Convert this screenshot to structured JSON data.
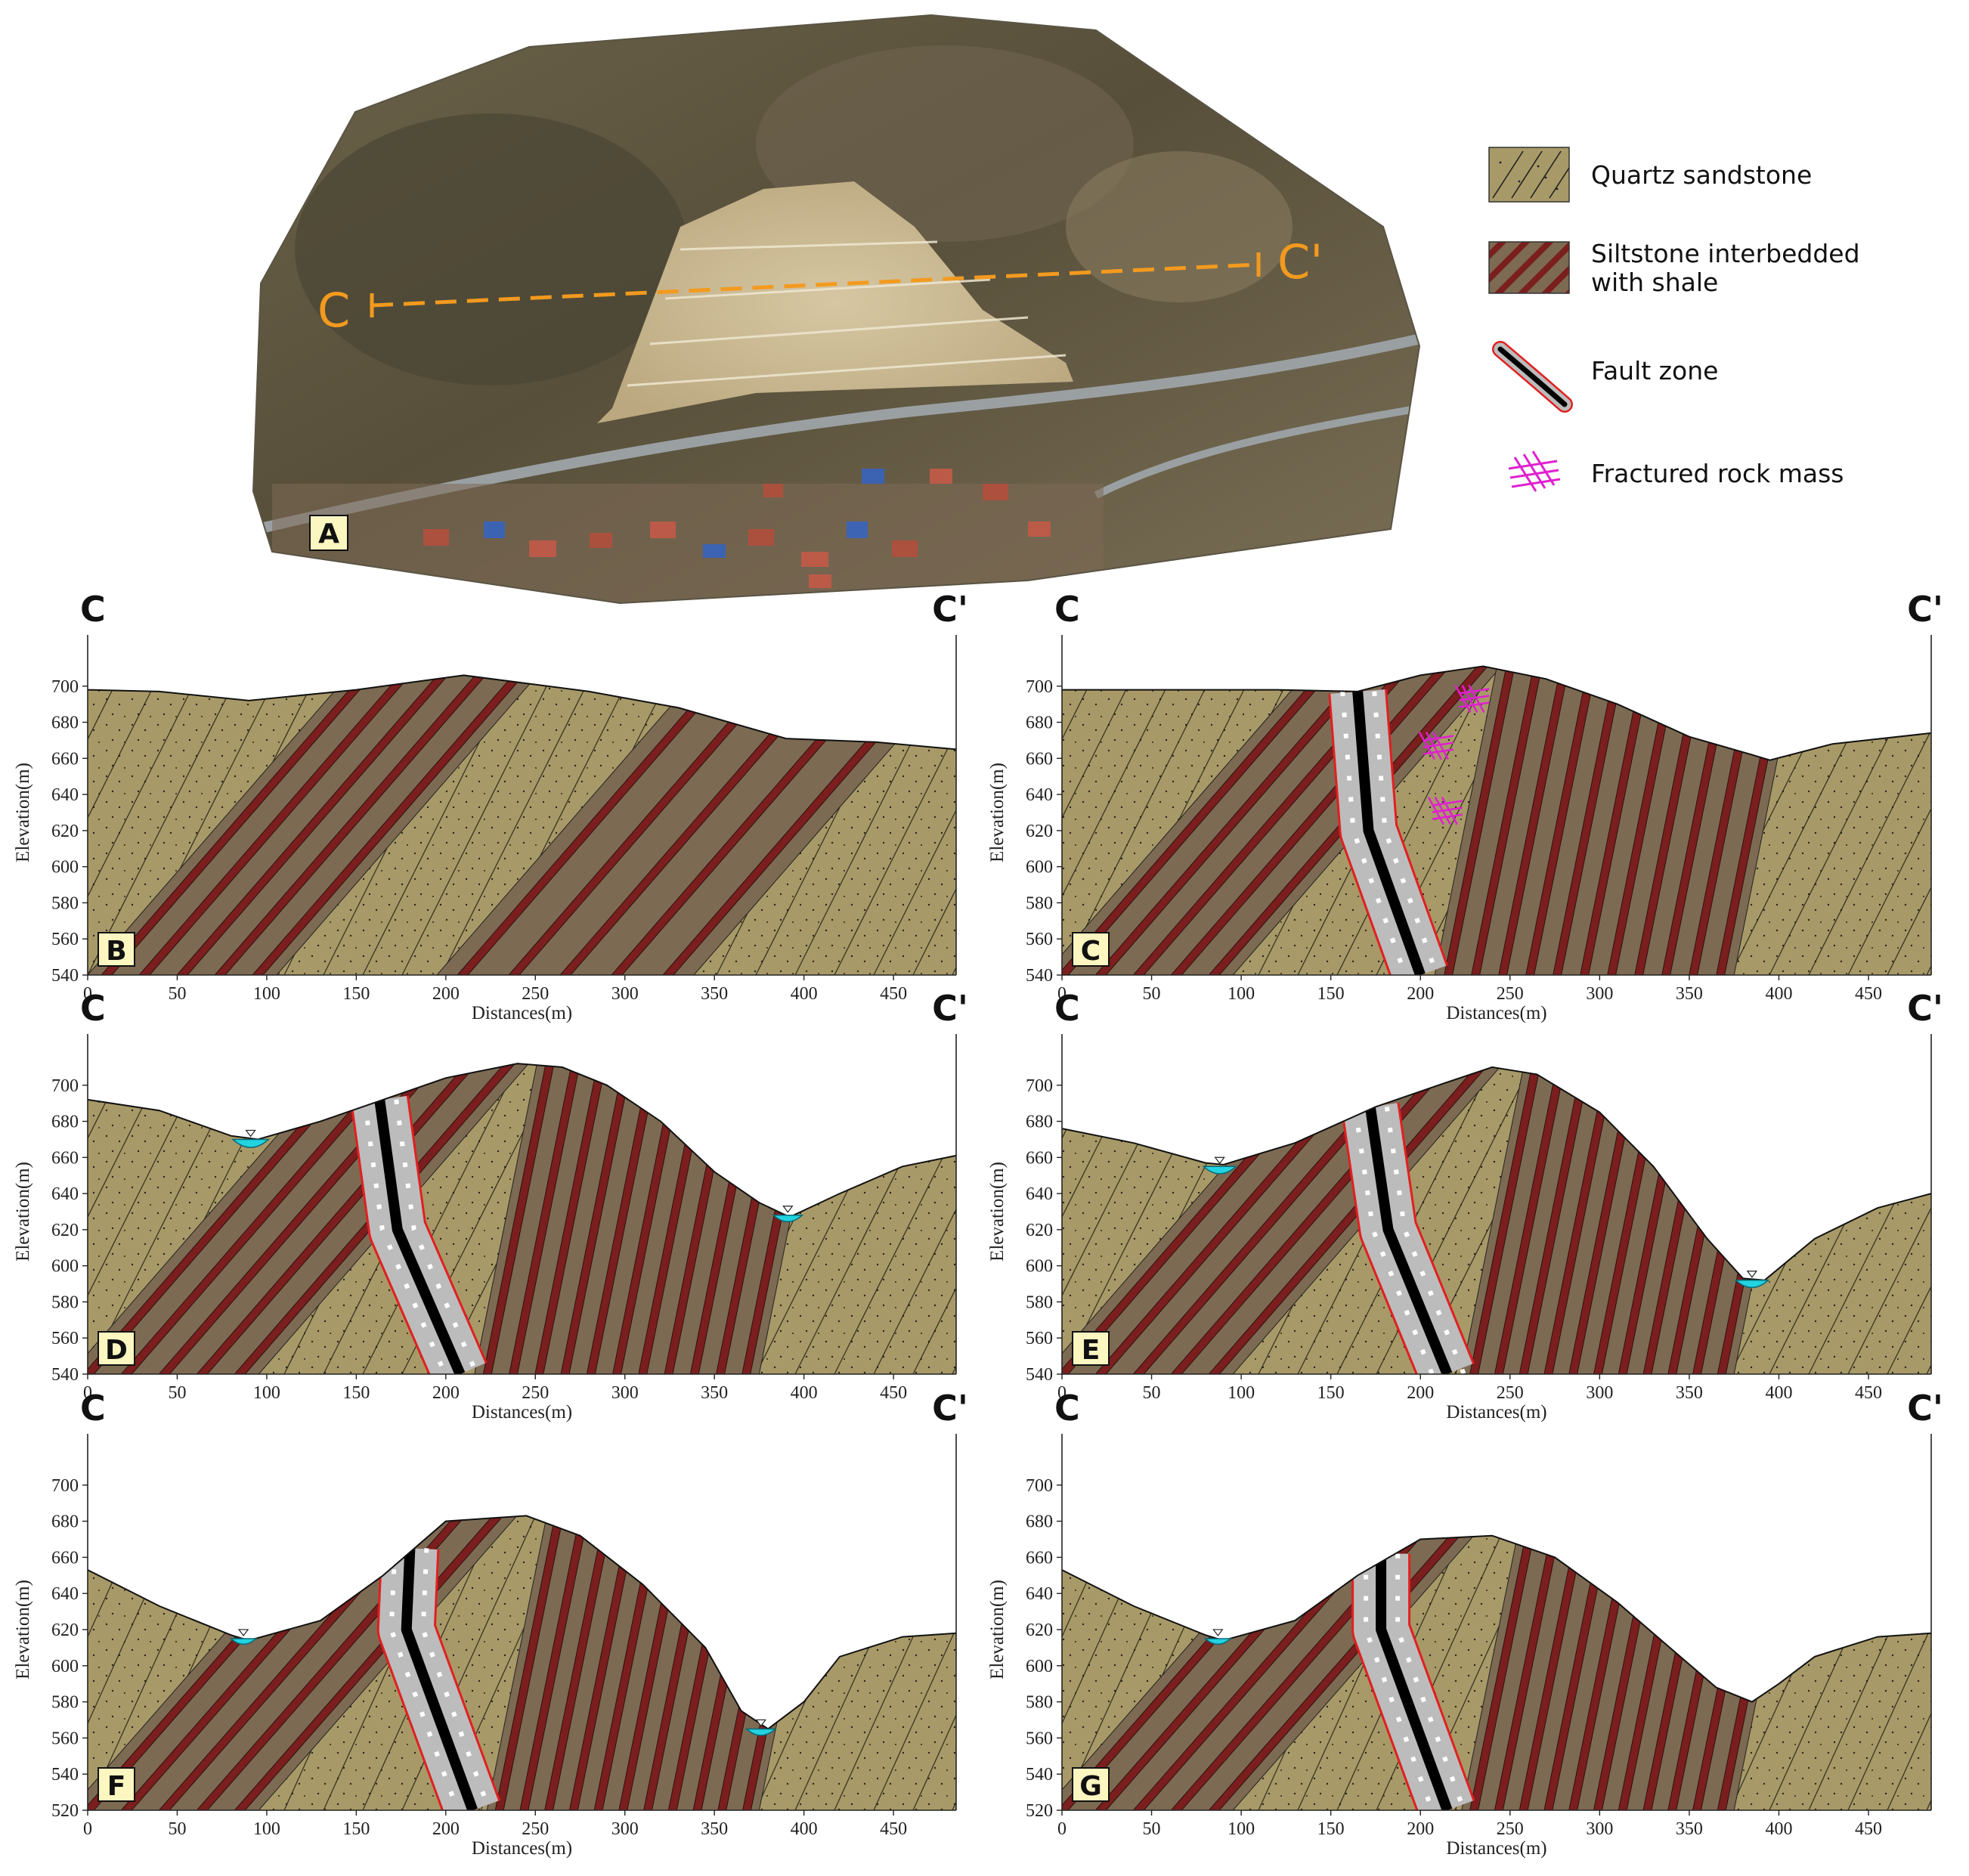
{
  "map": {
    "panel_label": "A",
    "section_start": "C",
    "section_end": "C'"
  },
  "legend": [
    {
      "label_lines": [
        "Quartz sandstone"
      ],
      "icon": "sandstone-swatch",
      "color": "#a89a68"
    },
    {
      "label_lines": [
        "Siltstone interbedded",
        "with shale"
      ],
      "icon": "siltstone-shale-swatch",
      "color": "#7a1e1e"
    },
    {
      "label_lines": [
        "Fault zone"
      ],
      "icon": "fault-zone-symbol",
      "color": "#e02020"
    },
    {
      "label_lines": [
        "Fractured rock mass"
      ],
      "icon": "fracture-symbol",
      "color": "#e020d0"
    }
  ],
  "colors": {
    "sandstone": "#a89a68",
    "siltstone_band": "#7c6a52",
    "shale_stripe": "#7a1e1e",
    "fault_gouge": "#bcbcbc",
    "fault_core": "#000000",
    "fault_edge": "#e02020",
    "water": "#22d3e0",
    "orange_line": "#f39a1e",
    "label_box": "#fcf6c0"
  },
  "chart_data": [
    {
      "panel": "B",
      "type": "diagram",
      "start_label": "C",
      "end_label": "C'",
      "xlabel": "Distances(m)",
      "ylabel": "Elevation(m)",
      "xlim": [
        0,
        485
      ],
      "ylim": [
        540,
        720
      ],
      "xticks": [
        0,
        50,
        100,
        150,
        200,
        250,
        300,
        350,
        400,
        450
      ],
      "yticks": [
        540,
        560,
        580,
        600,
        620,
        640,
        660,
        680,
        700
      ],
      "surface": [
        [
          0,
          698
        ],
        [
          40,
          697
        ],
        [
          90,
          692
        ],
        [
          150,
          698
        ],
        [
          210,
          706
        ],
        [
          280,
          697
        ],
        [
          330,
          688
        ],
        [
          390,
          671
        ],
        [
          440,
          669
        ],
        [
          485,
          665
        ]
      ],
      "fault": null,
      "water": []
    },
    {
      "panel": "C",
      "type": "diagram",
      "start_label": "C",
      "end_label": "C'",
      "xlabel": "Distances(m)",
      "ylabel": "Elevation(m)",
      "xlim": [
        0,
        485
      ],
      "ylim": [
        540,
        720
      ],
      "xticks": [
        0,
        50,
        100,
        150,
        200,
        250,
        300,
        350,
        400,
        450
      ],
      "yticks": [
        540,
        560,
        580,
        600,
        620,
        640,
        660,
        680,
        700
      ],
      "surface": [
        [
          0,
          698
        ],
        [
          60,
          698
        ],
        [
          120,
          698
        ],
        [
          165,
          697
        ],
        [
          200,
          706
        ],
        [
          235,
          711
        ],
        [
          270,
          704
        ],
        [
          310,
          690
        ],
        [
          350,
          672
        ],
        [
          385,
          662
        ],
        [
          395,
          659
        ],
        [
          430,
          668
        ],
        [
          485,
          674
        ]
      ],
      "fault": [
        [
          165,
          697
        ],
        [
          171,
          620
        ],
        [
          200,
          540
        ]
      ],
      "water": []
    },
    {
      "panel": "D",
      "type": "diagram",
      "start_label": "C",
      "end_label": "C'",
      "xlabel": "Distances(m)",
      "ylabel": "Elevation(m)",
      "xlim": [
        0,
        485
      ],
      "ylim": [
        540,
        720
      ],
      "xticks": [
        0,
        50,
        100,
        150,
        200,
        250,
        300,
        350,
        400,
        450
      ],
      "yticks": [
        540,
        560,
        580,
        600,
        620,
        640,
        660,
        680,
        700
      ],
      "surface": [
        [
          0,
          692
        ],
        [
          40,
          686
        ],
        [
          80,
          672
        ],
        [
          95,
          670
        ],
        [
          130,
          680
        ],
        [
          165,
          692
        ],
        [
          200,
          704
        ],
        [
          240,
          712
        ],
        [
          265,
          710
        ],
        [
          290,
          700
        ],
        [
          320,
          680
        ],
        [
          350,
          652
        ],
        [
          375,
          635
        ],
        [
          392,
          627
        ],
        [
          420,
          640
        ],
        [
          455,
          655
        ],
        [
          485,
          661
        ]
      ],
      "fault": [
        [
          163,
          692
        ],
        [
          173,
          620
        ],
        [
          208,
          540
        ]
      ],
      "water": [
        {
          "x": 91,
          "y": 670,
          "w": 10
        },
        {
          "x": 391,
          "y": 628,
          "w": 8
        }
      ]
    },
    {
      "panel": "E",
      "type": "diagram",
      "start_label": "C",
      "end_label": "C'",
      "xlabel": "Distances(m)",
      "ylabel": "Elevation(m)",
      "xlim": [
        0,
        485
      ],
      "ylim": [
        540,
        720
      ],
      "xticks": [
        0,
        50,
        100,
        150,
        200,
        250,
        300,
        350,
        400,
        450
      ],
      "yticks": [
        540,
        560,
        580,
        600,
        620,
        640,
        660,
        680,
        700
      ],
      "surface": [
        [
          0,
          676
        ],
        [
          40,
          668
        ],
        [
          80,
          657
        ],
        [
          90,
          656
        ],
        [
          130,
          668
        ],
        [
          175,
          688
        ],
        [
          210,
          700
        ],
        [
          240,
          710
        ],
        [
          265,
          706
        ],
        [
          300,
          685
        ],
        [
          330,
          655
        ],
        [
          360,
          615
        ],
        [
          380,
          593
        ],
        [
          392,
          592
        ],
        [
          420,
          615
        ],
        [
          455,
          632
        ],
        [
          485,
          640
        ]
      ],
      "fault": [
        [
          172,
          688
        ],
        [
          182,
          620
        ],
        [
          215,
          540
        ]
      ],
      "water": [
        {
          "x": 88,
          "y": 655,
          "w": 9
        },
        {
          "x": 385,
          "y": 592,
          "w": 9
        }
      ]
    },
    {
      "panel": "F",
      "type": "diagram",
      "start_label": "C",
      "end_label": "C'",
      "xlabel": "Distances(m)",
      "ylabel": "Elevation(m)",
      "xlim": [
        0,
        485
      ],
      "ylim": [
        520,
        720
      ],
      "xticks": [
        0,
        50,
        100,
        150,
        200,
        250,
        300,
        350,
        400,
        450
      ],
      "yticks": [
        520,
        540,
        560,
        580,
        600,
        620,
        640,
        660,
        680,
        700
      ],
      "surface": [
        [
          0,
          653
        ],
        [
          40,
          633
        ],
        [
          80,
          617
        ],
        [
          90,
          614
        ],
        [
          130,
          625
        ],
        [
          165,
          650
        ],
        [
          200,
          680
        ],
        [
          245,
          683
        ],
        [
          275,
          672
        ],
        [
          310,
          645
        ],
        [
          345,
          610
        ],
        [
          365,
          575
        ],
        [
          380,
          565
        ],
        [
          400,
          580
        ],
        [
          420,
          605
        ],
        [
          455,
          616
        ],
        [
          485,
          618
        ]
      ],
      "fault": [
        [
          180,
          665
        ],
        [
          178,
          620
        ],
        [
          215,
          520
        ]
      ],
      "water": [
        {
          "x": 87,
          "y": 615,
          "w": 7
        },
        {
          "x": 376,
          "y": 565,
          "w": 8
        }
      ]
    },
    {
      "panel": "G",
      "type": "diagram",
      "start_label": "C",
      "end_label": "C'",
      "xlabel": "Distances(m)",
      "ylabel": "Elevation(m)",
      "xlim": [
        0,
        485
      ],
      "ylim": [
        520,
        720
      ],
      "xticks": [
        0,
        50,
        100,
        150,
        200,
        250,
        300,
        350,
        400,
        450
      ],
      "yticks": [
        520,
        540,
        560,
        580,
        600,
        620,
        640,
        660,
        680,
        700
      ],
      "surface": [
        [
          0,
          653
        ],
        [
          40,
          633
        ],
        [
          80,
          617
        ],
        [
          90,
          614
        ],
        [
          130,
          625
        ],
        [
          165,
          650
        ],
        [
          200,
          670
        ],
        [
          240,
          672
        ],
        [
          275,
          660
        ],
        [
          310,
          635
        ],
        [
          345,
          605
        ],
        [
          365,
          588
        ],
        [
          385,
          580
        ],
        [
          400,
          590
        ],
        [
          420,
          605
        ],
        [
          455,
          616
        ],
        [
          485,
          618
        ]
      ],
      "fault": [
        [
          178,
          662
        ],
        [
          178,
          620
        ],
        [
          215,
          520
        ]
      ],
      "water": [
        {
          "x": 87,
          "y": 615,
          "w": 7
        }
      ]
    }
  ]
}
